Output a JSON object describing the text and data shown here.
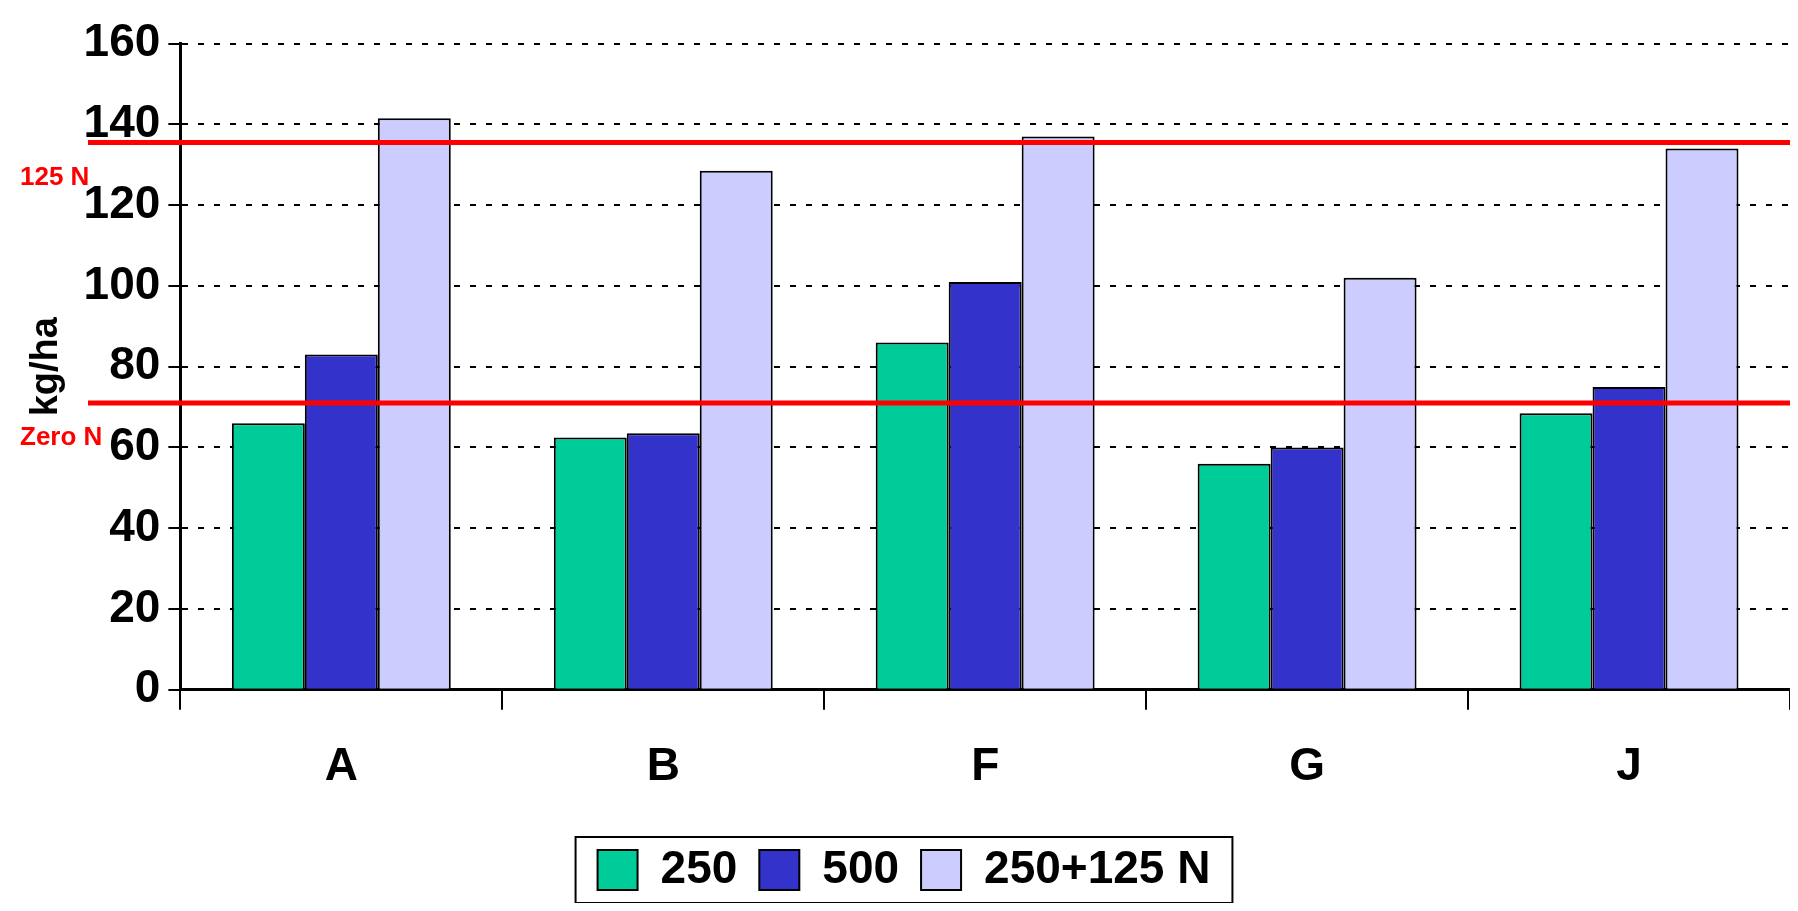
{
  "chart_data": {
    "type": "bar",
    "ylabel": "kg/ha",
    "categories": [
      "A",
      "B",
      "F",
      "G",
      "J"
    ],
    "series": [
      {
        "name": "250",
        "color": "#00cc99",
        "values": [
          66,
          62.5,
          86,
          56,
          68.5
        ]
      },
      {
        "name": "500",
        "color": "#3333cc",
        "values": [
          83,
          63.5,
          101,
          60,
          75
        ]
      },
      {
        "name": "250+125 N",
        "color": "#ccccff",
        "values": [
          141.5,
          128.5,
          137,
          102,
          134
        ]
      }
    ],
    "ylim": [
      0,
      160
    ],
    "yticks": [
      0,
      20,
      40,
      60,
      80,
      100,
      120,
      140,
      160
    ],
    "grid": "y",
    "legend": "bottom",
    "ref_lines": [
      {
        "axis": "y",
        "value": 135.5,
        "label": "125 N",
        "color": "#ff0000"
      },
      {
        "axis": "y",
        "value": 71,
        "label": "Zero N",
        "color": "#ff0000"
      }
    ]
  }
}
